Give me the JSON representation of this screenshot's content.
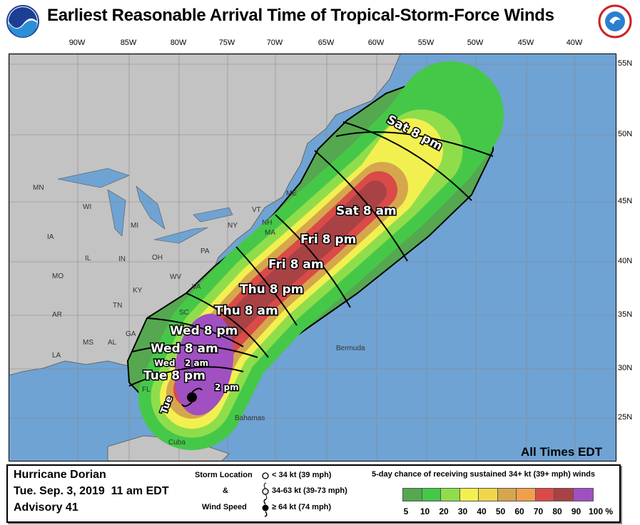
{
  "title": "Earliest Reasonable Arrival Time of Tropical-Storm-Force Winds",
  "logos": {
    "left": "NOAA",
    "right": "National Weather Service"
  },
  "longitude_labels": [
    "90W",
    "85W",
    "80W",
    "75W",
    "70W",
    "65W",
    "60W",
    "55W",
    "50W",
    "45W",
    "40W"
  ],
  "latitude_labels": [
    "55N",
    "50N",
    "45N",
    "40N",
    "35N",
    "30N",
    "25N"
  ],
  "map": {
    "place_labels": [
      "MN",
      "WI",
      "MI",
      "IA",
      "IL",
      "IN",
      "OH",
      "PA",
      "NY",
      "VT",
      "NH",
      "ME",
      "MA",
      "MO",
      "KY",
      "WV",
      "VA",
      "TN",
      "AR",
      "MS",
      "AL",
      "GA",
      "SC",
      "LA",
      "FL",
      "Bermuda",
      "Bahamas",
      "Cuba"
    ],
    "time_labels": [
      "Tue",
      "Tue 8 pm",
      "2 pm",
      "Wed",
      "2 am",
      "Wed 8 am",
      "Wed 8 pm",
      "Thu 8 am",
      "Thu 8 pm",
      "Fri 8 am",
      "Fri 8 pm",
      "Sat 8 am",
      "Sat 8 pm"
    ],
    "times_note": "All Times EDT",
    "colors": {
      "ocean": "#6fa3d3",
      "land": "#c3c3c3",
      "lakes": "#6fa3d3"
    }
  },
  "info": {
    "storm": "Hurricane Dorian",
    "datetime": "Tue. Sep. 3, 2019  11 am EDT",
    "advisory": "Advisory 41"
  },
  "storm_legend": {
    "label1": "Storm Location",
    "label2": "&",
    "label3": "Wind Speed",
    "items": [
      "< 34 kt (39 mph)",
      "34-63 kt (39-73 mph)",
      "≥ 64 kt (74 mph)"
    ]
  },
  "probability_legend": {
    "title": "5-day chance of receiving sustained 34+ kt (39+ mph) winds",
    "ticks": [
      "5",
      "10",
      "20",
      "30",
      "40",
      "50",
      "60",
      "70",
      "80",
      "90",
      "100 %"
    ],
    "colors": [
      "#55a84f",
      "#45c848",
      "#90dd4c",
      "#f2f050",
      "#f1d64c",
      "#d6a64c",
      "#f0a04c",
      "#d94a48",
      "#a84244",
      "#a050c0"
    ]
  }
}
